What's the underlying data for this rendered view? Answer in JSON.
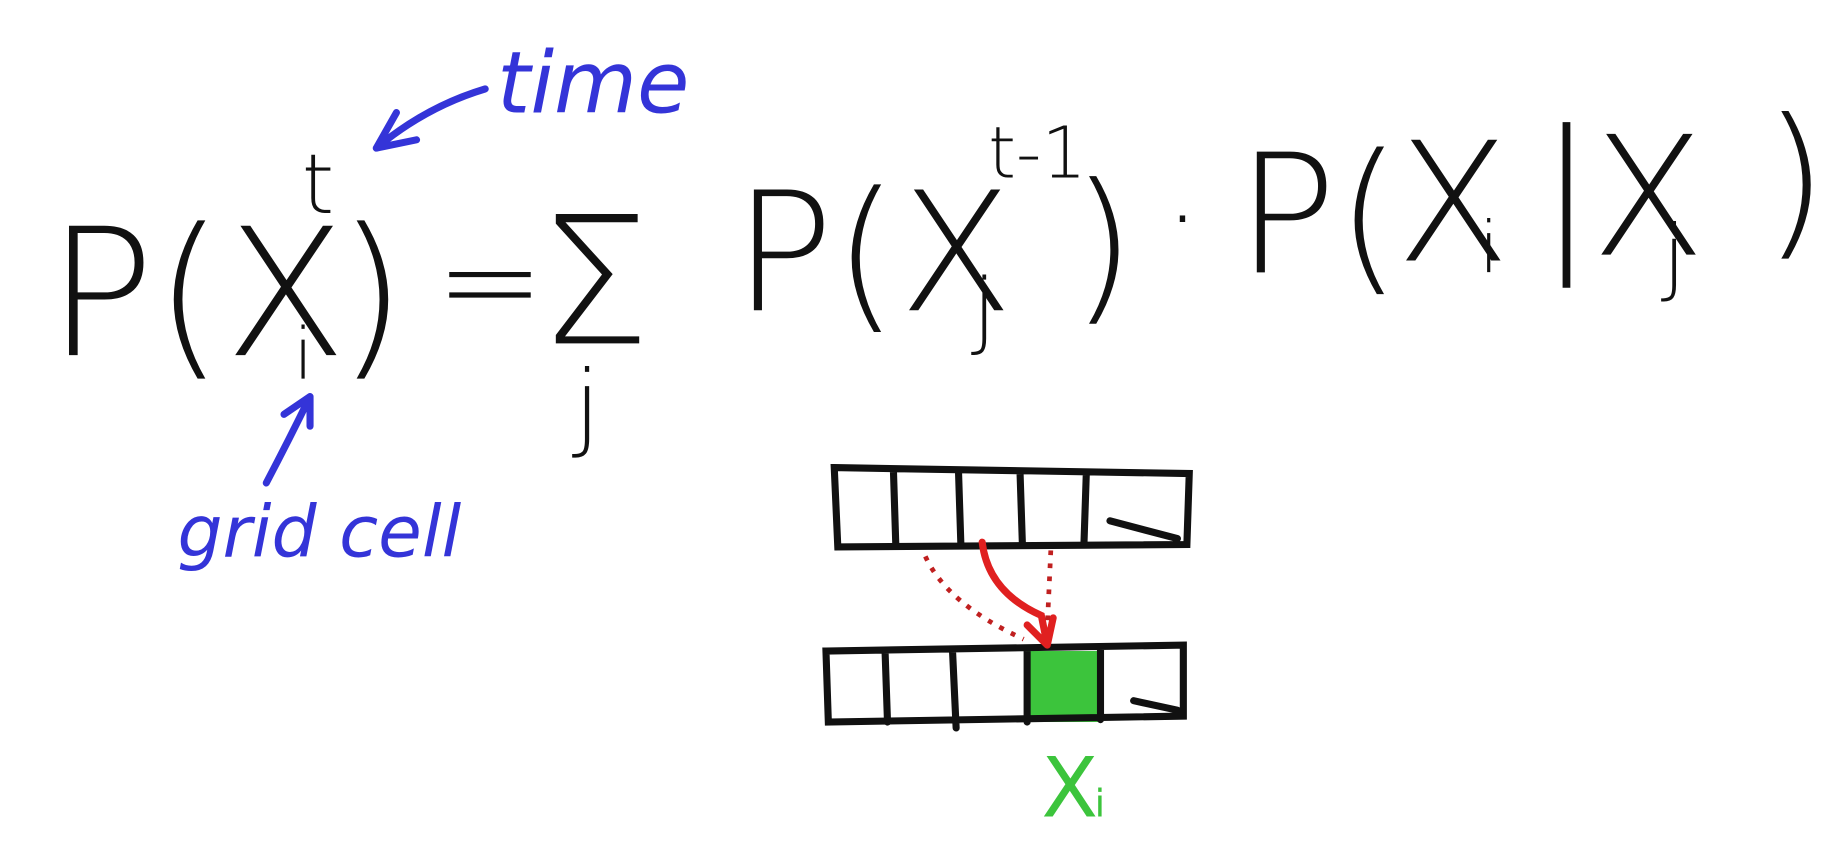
{
  "formula": [
    "P(",
    "X",
    "t",
    "i",
    ")",
    "=",
    "Σ",
    "j",
    "P(",
    "X",
    "t-1",
    "j",
    ")",
    "·",
    "P(",
    "X",
    "i",
    "|",
    "X",
    "j",
    ")"
  ],
  "annotations": {
    "time": "time",
    "grid_cell": "grid cell"
  },
  "cell_label": {
    "main": "X",
    "sub": "i"
  }
}
